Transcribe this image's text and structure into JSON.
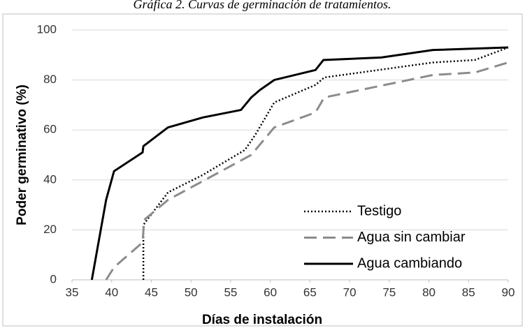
{
  "chart_data": {
    "type": "line",
    "title": "Gráfica 2. Curvas de germinación de tratamientos.",
    "xlabel": "Días de instalación",
    "ylabel": "Poder germinativo (%)",
    "xlim": [
      35,
      90
    ],
    "xticks": [
      35,
      40,
      45,
      50,
      55,
      60,
      65,
      70,
      75,
      80,
      85,
      90
    ],
    "ylim": [
      0,
      100
    ],
    "yticks": [
      0,
      20,
      40,
      60,
      80,
      100
    ],
    "grid": true,
    "legend": "lower right",
    "series": [
      {
        "name": "Testigo",
        "color": "#000000",
        "style": "dotted",
        "x": [
          44,
          44,
          47.1,
          51.5,
          56.8,
          58.1,
          60.5,
          65.7,
          66.8,
          80.5,
          85.8,
          90
        ],
        "values": [
          0,
          22,
          35,
          42,
          52,
          58,
          71,
          78,
          81,
          87,
          88,
          93
        ]
      },
      {
        "name": "Agua sin cambiar",
        "color": "#8c8c8c",
        "style": "dashed",
        "x": [
          39.3,
          40.3,
          43.9,
          44.1,
          47.1,
          57.6,
          60.5,
          65.7,
          66.8,
          80.5,
          85.8,
          90
        ],
        "values": [
          0,
          5,
          15,
          24,
          32,
          50,
          61,
          67,
          73,
          82,
          83,
          87
        ]
      },
      {
        "name": "Agua cambiando",
        "color": "#000000",
        "style": "solid",
        "x": [
          37.5,
          39.3,
          40.3,
          43.9,
          44,
          47.1,
          51.5,
          56.3,
          57.6,
          58.7,
          60.5,
          65.7,
          66.7,
          74,
          80.5,
          90
        ],
        "values": [
          0,
          32,
          43.5,
          51,
          53.5,
          61,
          65,
          68,
          73,
          76,
          80,
          84,
          88,
          89,
          92,
          93
        ]
      }
    ]
  }
}
